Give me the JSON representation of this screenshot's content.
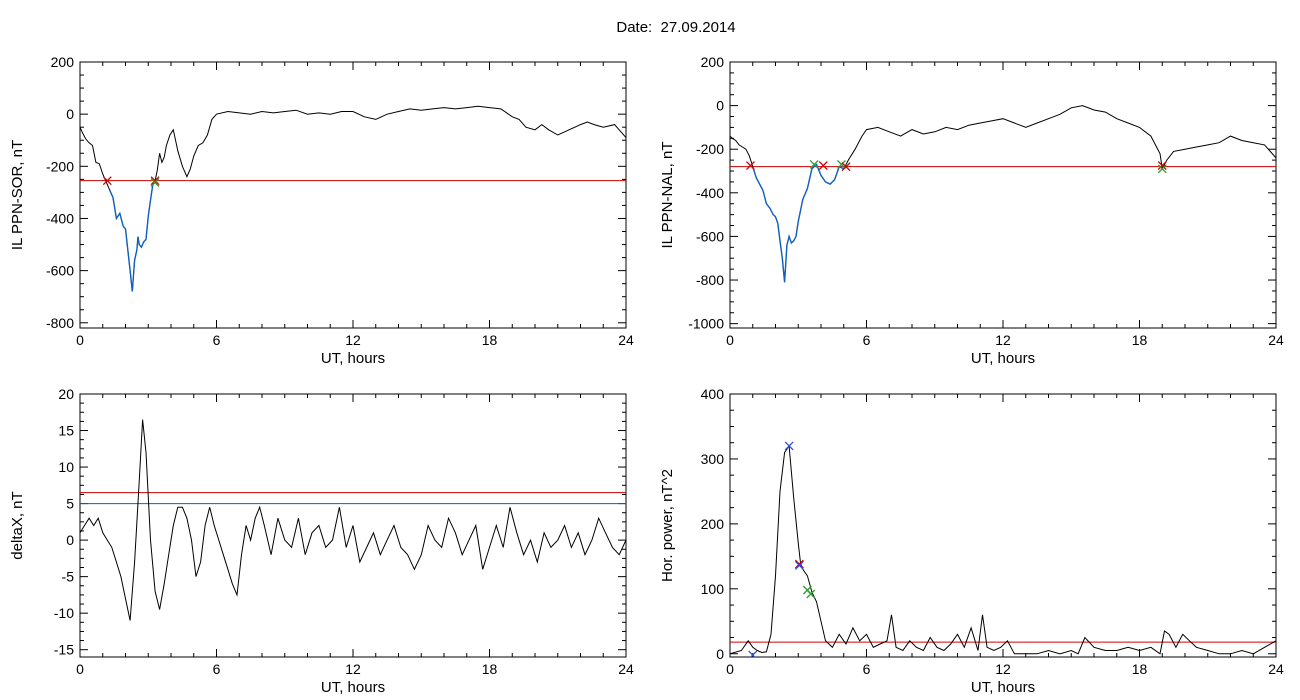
{
  "figure": {
    "date_label": "Date:  27.09.2014"
  },
  "colors": {
    "data_line": "#000000",
    "threshold": "#d00000",
    "blue": "#1060c0",
    "green": "#2e9e2e",
    "marker_blue": "#3050d0"
  },
  "chart_data": [
    {
      "type": "line",
      "id": "ppn-sor",
      "ylabel": "IL PPN-SOR, nT",
      "xlabel": "UT, hours",
      "xlim": [
        0,
        24
      ],
      "ylim": [
        -820,
        200
      ],
      "xticks": [
        0,
        6,
        12,
        18,
        24
      ],
      "yticks": [
        -800,
        -600,
        -400,
        -200,
        0,
        200
      ],
      "threshold": -255,
      "highlight_range": [
        1.25,
        3.3
      ],
      "series": [
        {
          "x": [
            0,
            0.1,
            0.25,
            0.4,
            0.55,
            0.7,
            0.85,
            1.0,
            1.15,
            1.3,
            1.45,
            1.6,
            1.75,
            1.9,
            2.0,
            2.1,
            2.2,
            2.3,
            2.4,
            2.5,
            2.55,
            2.6,
            2.7,
            2.8,
            2.9,
            3.0,
            3.1,
            3.2,
            3.3,
            3.4,
            3.5,
            3.6,
            3.7,
            3.8,
            3.95,
            4.1,
            4.3,
            4.5,
            4.7,
            4.85,
            5.0,
            5.2,
            5.4,
            5.6,
            5.8,
            6.0,
            6.5,
            7,
            7.5,
            8,
            8.5,
            9,
            9.5,
            10,
            10.5,
            11,
            11.5,
            12,
            12.5,
            13,
            13.5,
            14,
            14.5,
            15,
            15.5,
            16,
            16.5,
            17,
            17.5,
            18,
            18.5,
            19,
            19.3,
            19.6,
            20,
            20.3,
            20.6,
            21,
            21.5,
            22,
            22.3,
            22.6,
            23,
            23.5,
            24
          ],
          "y": [
            -50,
            -70,
            -95,
            -110,
            -120,
            -185,
            -190,
            -230,
            -260,
            -290,
            -320,
            -400,
            -380,
            -430,
            -440,
            -520,
            -600,
            -680,
            -560,
            -520,
            -470,
            -500,
            -510,
            -490,
            -480,
            -390,
            -330,
            -270,
            -255,
            -215,
            -150,
            -185,
            -165,
            -120,
            -80,
            -60,
            -140,
            -200,
            -240,
            -210,
            -160,
            -120,
            -110,
            -80,
            -20,
            0,
            10,
            5,
            0,
            10,
            5,
            10,
            15,
            0,
            5,
            0,
            10,
            10,
            -10,
            -20,
            0,
            10,
            20,
            15,
            20,
            25,
            20,
            25,
            30,
            25,
            20,
            -10,
            -20,
            -50,
            -60,
            -40,
            -60,
            -80,
            -60,
            -40,
            -30,
            -40,
            -50,
            -40,
            -90
          ]
        }
      ],
      "markers": [
        {
          "x": 1.2,
          "y": -255,
          "color": "#d00000"
        },
        {
          "x": 3.3,
          "y": -255,
          "color": "#d00000"
        },
        {
          "x": 3.3,
          "y": -262,
          "color": "#2e9e2e"
        }
      ]
    },
    {
      "type": "line",
      "id": "ppn-nal",
      "ylabel": "IL PPN-NAL, nT",
      "xlabel": "UT, hours",
      "xlim": [
        0,
        24
      ],
      "ylim": [
        -1020,
        200
      ],
      "xticks": [
        0,
        6,
        12,
        18,
        24
      ],
      "yticks": [
        -1000,
        -800,
        -600,
        -400,
        -200,
        0,
        200
      ],
      "threshold": -280,
      "highlight_range": [
        0.9,
        5.1
      ],
      "series": [
        {
          "x": [
            0,
            0.1,
            0.25,
            0.4,
            0.55,
            0.7,
            0.85,
            1.0,
            1.15,
            1.3,
            1.45,
            1.6,
            1.75,
            1.9,
            2.0,
            2.1,
            2.2,
            2.3,
            2.4,
            2.5,
            2.6,
            2.7,
            2.8,
            2.9,
            3.0,
            3.2,
            3.4,
            3.6,
            3.8,
            4.0,
            4.2,
            4.4,
            4.6,
            4.8,
            5.0,
            5.2,
            5.5,
            5.8,
            6.0,
            6.5,
            7,
            7.5,
            8,
            8.5,
            9,
            9.5,
            10,
            10.5,
            11,
            11.5,
            12,
            12.5,
            13,
            13.5,
            14,
            14.5,
            15,
            15.5,
            16,
            16.5,
            17,
            17.5,
            18,
            18.5,
            18.9,
            19.0,
            19.2,
            19.5,
            20,
            20.5,
            21,
            21.5,
            22,
            22.5,
            23,
            23.5,
            24
          ],
          "y": [
            -140,
            -150,
            -160,
            -180,
            -190,
            -200,
            -230,
            -280,
            -330,
            -360,
            -390,
            -450,
            -470,
            -500,
            -510,
            -540,
            -620,
            -700,
            -810,
            -640,
            -600,
            -630,
            -620,
            -600,
            -530,
            -430,
            -380,
            -290,
            -270,
            -320,
            -350,
            -360,
            -340,
            -280,
            -290,
            -250,
            -200,
            -140,
            -110,
            -100,
            -120,
            -140,
            -110,
            -130,
            -120,
            -100,
            -110,
            -90,
            -80,
            -70,
            -60,
            -80,
            -100,
            -80,
            -60,
            -40,
            -10,
            0,
            -20,
            -30,
            -60,
            -80,
            -100,
            -140,
            -220,
            -290,
            -250,
            -210,
            -200,
            -190,
            -180,
            -170,
            -140,
            -160,
            -170,
            -180,
            -240
          ]
        }
      ],
      "markers": [
        {
          "x": 0.9,
          "y": -275,
          "color": "#d00000"
        },
        {
          "x": 3.7,
          "y": -270,
          "color": "#2e9e2e"
        },
        {
          "x": 4.1,
          "y": -275,
          "color": "#d00000"
        },
        {
          "x": 4.9,
          "y": -270,
          "color": "#2e9e2e"
        },
        {
          "x": 5.1,
          "y": -280,
          "color": "#d00000"
        },
        {
          "x": 19.0,
          "y": -275,
          "color": "#d00000"
        },
        {
          "x": 19.0,
          "y": -290,
          "color": "#2e9e2e"
        }
      ]
    },
    {
      "type": "line",
      "id": "deltax",
      "ylabel": "deltaX, nT",
      "xlabel": "UT, hours",
      "xlim": [
        0,
        24
      ],
      "ylim": [
        -16,
        20
      ],
      "xticks": [
        0,
        6,
        12,
        18,
        24
      ],
      "yticks": [
        -15,
        -10,
        -5,
        0,
        5,
        10,
        15,
        20
      ],
      "threshold": 6.5,
      "blue_line": 5.0,
      "series": [
        {
          "x": [
            0,
            0.2,
            0.4,
            0.6,
            0.8,
            1.0,
            1.2,
            1.4,
            1.6,
            1.8,
            2.0,
            2.2,
            2.4,
            2.6,
            2.75,
            2.9,
            3.1,
            3.3,
            3.5,
            3.7,
            3.9,
            4.1,
            4.3,
            4.5,
            4.7,
            4.9,
            5.1,
            5.3,
            5.5,
            5.7,
            5.9,
            6.1,
            6.3,
            6.5,
            6.7,
            6.9,
            7.1,
            7.3,
            7.5,
            7.7,
            7.9,
            8.1,
            8.4,
            8.7,
            9.0,
            9.3,
            9.6,
            9.9,
            10.2,
            10.5,
            10.8,
            11.1,
            11.4,
            11.7,
            12.0,
            12.3,
            12.6,
            12.9,
            13.2,
            13.5,
            13.8,
            14.1,
            14.4,
            14.7,
            15.0,
            15.3,
            15.6,
            15.9,
            16.2,
            16.5,
            16.8,
            17.1,
            17.4,
            17.7,
            18.0,
            18.3,
            18.6,
            18.9,
            19.2,
            19.5,
            19.8,
            20.1,
            20.4,
            20.7,
            21.0,
            21.3,
            21.6,
            21.9,
            22.2,
            22.5,
            22.8,
            23.1,
            23.4,
            23.7,
            24
          ],
          "y": [
            1,
            2,
            3,
            2,
            3,
            1,
            0,
            -1,
            -3,
            -5,
            -8,
            -11,
            -3,
            8,
            16.5,
            12,
            0,
            -7,
            -9.5,
            -6,
            -2,
            2,
            4.5,
            4.5,
            3,
            0,
            -5,
            -3,
            2,
            4.5,
            2,
            0,
            -2,
            -4,
            -6,
            -7.5,
            -2,
            2,
            0,
            3,
            4.5,
            2,
            -2,
            3,
            0,
            -1,
            3,
            -2,
            1,
            2,
            -1,
            0,
            4.5,
            -1,
            2,
            -3,
            -1,
            1,
            -2,
            0,
            2,
            -1,
            -2,
            -4,
            -2,
            2,
            0,
            -1,
            3,
            1,
            -2,
            0,
            2,
            -4,
            -1,
            2,
            -1,
            4.5,
            1,
            -2,
            0,
            -3,
            1,
            -1,
            0,
            2,
            -1,
            1,
            -2,
            0,
            3,
            1,
            -1,
            -2,
            0
          ]
        }
      ]
    },
    {
      "type": "line",
      "id": "hor-power",
      "ylabel": "Hor. power, nT^2",
      "xlabel": "UT, hours",
      "xlim": [
        0,
        24
      ],
      "ylim": [
        -5,
        400
      ],
      "xticks": [
        0,
        6,
        12,
        18,
        24
      ],
      "yticks": [
        0,
        100,
        200,
        300,
        400
      ],
      "threshold": 18,
      "series": [
        {
          "x": [
            0,
            0.5,
            0.8,
            1.0,
            1.2,
            1.4,
            1.6,
            1.8,
            2.0,
            2.2,
            2.4,
            2.6,
            2.8,
            3.0,
            3.1,
            3.2,
            3.4,
            3.6,
            3.8,
            4.0,
            4.2,
            4.5,
            4.8,
            5.1,
            5.4,
            5.7,
            6.0,
            6.3,
            6.6,
            6.9,
            7.1,
            7.3,
            7.6,
            7.9,
            8.2,
            8.5,
            8.8,
            9.1,
            9.4,
            9.7,
            10.0,
            10.3,
            10.6,
            10.9,
            11.1,
            11.3,
            11.6,
            11.9,
            12.2,
            12.5,
            13,
            13.5,
            14,
            14.5,
            15,
            15.3,
            15.6,
            16,
            16.5,
            17,
            17.5,
            18,
            18.5,
            18.9,
            19.1,
            19.3,
            19.6,
            19.9,
            20.2,
            20.5,
            21,
            21.5,
            22,
            22.5,
            23,
            23.5,
            24
          ],
          "y": [
            0,
            5,
            20,
            10,
            5,
            2,
            3,
            30,
            120,
            250,
            310,
            320,
            240,
            170,
            140,
            130,
            120,
            95,
            80,
            50,
            20,
            10,
            30,
            15,
            40,
            20,
            30,
            10,
            15,
            20,
            60,
            10,
            5,
            20,
            10,
            5,
            25,
            10,
            5,
            15,
            30,
            10,
            40,
            5,
            60,
            10,
            5,
            10,
            20,
            0,
            0,
            0,
            5,
            0,
            5,
            0,
            25,
            10,
            5,
            5,
            10,
            5,
            10,
            0,
            35,
            30,
            10,
            30,
            20,
            10,
            5,
            0,
            0,
            5,
            0,
            10,
            20
          ]
        }
      ],
      "markers": [
        {
          "x": 1.0,
          "y": -2,
          "color": "#3050d0"
        },
        {
          "x": 2.6,
          "y": 320,
          "color": "#3050d0"
        },
        {
          "x": 3.05,
          "y": 138,
          "color": "#d00000"
        },
        {
          "x": 3.05,
          "y": 136,
          "color": "#3050d0"
        },
        {
          "x": 3.4,
          "y": 98,
          "color": "#2e9e2e"
        },
        {
          "x": 3.55,
          "y": 92,
          "color": "#2e9e2e"
        }
      ]
    }
  ]
}
